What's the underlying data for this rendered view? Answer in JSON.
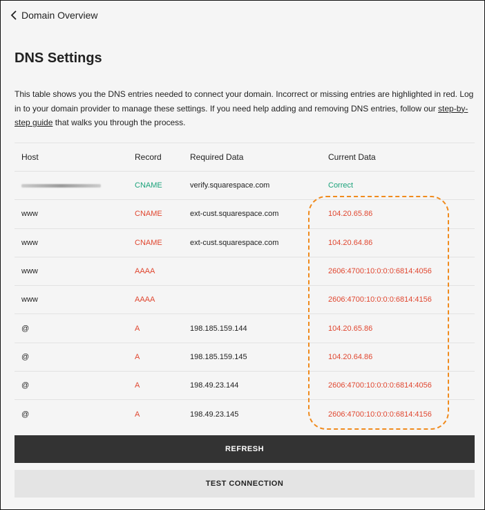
{
  "nav": {
    "back_label": "Domain Overview"
  },
  "page": {
    "title": "DNS Settings",
    "description_before": "This table shows you the DNS entries needed to connect your domain. Incorrect or missing entries are highlighted in red. Log in to your domain provider to manage these settings. If you need help adding and removing DNS entries, follow our ",
    "link_text": "step-by-step guide",
    "description_after": " that walks you through the process."
  },
  "table": {
    "headers": [
      "Host",
      "Record",
      "Required Data",
      "Current Data"
    ],
    "rows": [
      {
        "host": "",
        "record": "CNAME",
        "required": "verify.squarespace.com",
        "current": "Correct",
        "ok": true
      },
      {
        "host": "www",
        "record": "CNAME",
        "required": "ext-cust.squarespace.com",
        "current": "104.20.65.86",
        "ok": false
      },
      {
        "host": "www",
        "record": "CNAME",
        "required": "ext-cust.squarespace.com",
        "current": "104.20.64.86",
        "ok": false
      },
      {
        "host": "www",
        "record": "AAAA",
        "required": "",
        "current": "2606:4700:10:0:0:0:6814:4056",
        "ok": false
      },
      {
        "host": "www",
        "record": "AAAA",
        "required": "",
        "current": "2606:4700:10:0:0:0:6814:4156",
        "ok": false
      },
      {
        "host": "@",
        "record": "A",
        "required": "198.185.159.144",
        "current": "104.20.65.86",
        "ok": false
      },
      {
        "host": "@",
        "record": "A",
        "required": "198.185.159.145",
        "current": "104.20.64.86",
        "ok": false
      },
      {
        "host": "@",
        "record": "A",
        "required": "198.49.23.144",
        "current": "2606:4700:10:0:0:0:6814:4056",
        "ok": false
      },
      {
        "host": "@",
        "record": "A",
        "required": "198.49.23.145",
        "current": "2606:4700:10:0:0:0:6814:4156",
        "ok": false
      }
    ]
  },
  "buttons": {
    "refresh": "REFRESH",
    "test": "TEST CONNECTION"
  },
  "colors": {
    "error": "#e0462f",
    "ok": "#1aa27a",
    "highlight": "#f08a1c"
  }
}
